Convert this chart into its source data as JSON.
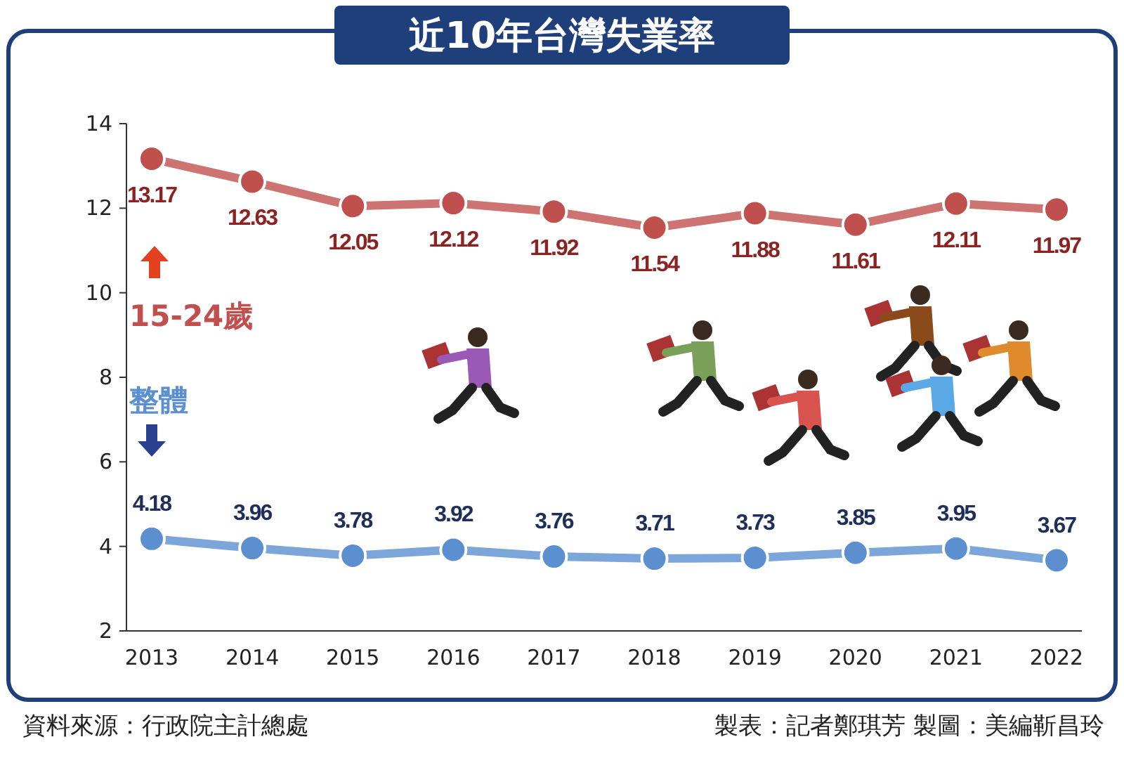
{
  "chart_data": {
    "type": "line",
    "title": "近10年台灣失業率",
    "categories": [
      "2013",
      "2014",
      "2015",
      "2016",
      "2017",
      "2018",
      "2019",
      "2020",
      "2021",
      "2022"
    ],
    "series": [
      {
        "name": "15-24歲",
        "color": "#c0504d",
        "values": [
          13.17,
          12.63,
          12.05,
          12.12,
          11.92,
          11.54,
          11.88,
          11.61,
          12.11,
          11.97
        ]
      },
      {
        "name": "整體",
        "color": "#5b8fcf",
        "values": [
          4.18,
          3.96,
          3.78,
          3.92,
          3.76,
          3.71,
          3.73,
          3.85,
          3.95,
          3.67
        ]
      }
    ],
    "ylim": [
      2,
      14
    ],
    "yticks": [
      2,
      4,
      6,
      8,
      10,
      12,
      14
    ],
    "data_labels": true,
    "marker": "circle",
    "line_style": "solid",
    "annotations": [
      "資料來源：行政院主計總處",
      "製表：記者鄭琪芳 製圖：美編靳昌玲"
    ]
  }
}
